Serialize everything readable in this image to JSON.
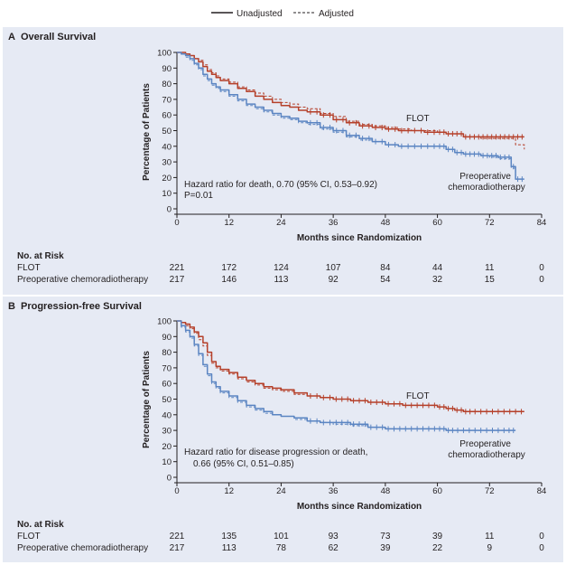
{
  "legend": {
    "unadjusted": "Unadjusted",
    "adjusted": "Adjusted"
  },
  "colors": {
    "flot": "#b5402a",
    "crt": "#5b85c2",
    "panel": "#e6eaf4",
    "axis": "#231f20"
  },
  "risk_header": "No. at Risk",
  "chart_data": [
    {
      "type": "line",
      "panel_letter": "A",
      "title": "Overall Survival",
      "xlabel": "Months since Randomization",
      "ylabel": "Percentage of Patients",
      "xlim": [
        0,
        84
      ],
      "ylim": [
        0,
        100
      ],
      "xticks": [
        0,
        12,
        24,
        36,
        48,
        60,
        72,
        84
      ],
      "yticks": [
        0,
        10,
        20,
        30,
        40,
        50,
        60,
        70,
        80,
        90,
        100
      ],
      "annotation": [
        "Hazard ratio for death, 0.70 (95% CI, 0.53–0.92)",
        "P=0.01"
      ],
      "series": [
        {
          "name": "FLOT",
          "label": "FLOT",
          "color": "#b5402a",
          "x": [
            0,
            1,
            2,
            3,
            4,
            5,
            6,
            7,
            8,
            9,
            10,
            12,
            14,
            16,
            18,
            20,
            22,
            24,
            26,
            28,
            30,
            33,
            36,
            39,
            42,
            45,
            48,
            51,
            54,
            57,
            60,
            62,
            64,
            66,
            68,
            70,
            72,
            74,
            76,
            78,
            79,
            80
          ],
          "y": [
            100,
            100,
            99,
            98,
            96,
            94,
            91,
            88,
            86,
            84,
            82,
            80,
            77,
            75,
            72,
            70,
            68,
            66,
            65,
            63,
            62,
            60,
            57,
            55,
            53,
            52,
            51,
            50,
            50,
            49,
            49,
            48,
            48,
            46,
            46,
            46,
            46,
            46,
            46,
            46,
            46,
            46
          ],
          "adjusted_y": [
            100,
            100,
            99,
            98,
            96,
            95,
            92,
            89,
            87,
            85,
            83,
            81,
            78,
            76,
            74,
            72,
            70,
            68,
            67,
            65,
            64,
            61,
            59,
            56,
            54,
            53,
            52,
            51,
            50,
            50,
            49,
            48,
            48,
            46,
            46,
            45,
            45,
            45,
            45,
            41,
            41,
            38
          ]
        },
        {
          "name": "Preoperative chemoradiotherapy",
          "label": "Preoperative\nchemoradiotherapy",
          "color": "#5b85c2",
          "x": [
            0,
            1,
            2,
            3,
            4,
            5,
            6,
            7,
            8,
            9,
            10,
            12,
            14,
            16,
            18,
            20,
            22,
            24,
            26,
            28,
            30,
            33,
            36,
            39,
            42,
            45,
            48,
            51,
            54,
            57,
            60,
            62,
            64,
            66,
            68,
            70,
            72,
            74,
            76,
            77,
            78,
            80
          ],
          "y": [
            100,
            99,
            98,
            96,
            93,
            90,
            86,
            83,
            80,
            78,
            76,
            73,
            70,
            67,
            65,
            63,
            61,
            59,
            58,
            56,
            55,
            52,
            50,
            47,
            45,
            43,
            41,
            40,
            40,
            40,
            40,
            38,
            36,
            35,
            35,
            34,
            34,
            33,
            33,
            27,
            19,
            19
          ],
          "adjusted_y": [
            100,
            99,
            97,
            95,
            92,
            89,
            85,
            82,
            79,
            77,
            75,
            72,
            69,
            66,
            64,
            62,
            60,
            58,
            57,
            55,
            54,
            51,
            49,
            46,
            44,
            43,
            41,
            40,
            40,
            40,
            40,
            38,
            36,
            35,
            35,
            34,
            33,
            32,
            32,
            26,
            19,
            19
          ]
        }
      ],
      "at_risk": {
        "times": [
          0,
          12,
          24,
          36,
          48,
          60,
          72,
          84
        ],
        "rows": [
          {
            "label": "FLOT",
            "values": [
              "221",
              "172",
              "124",
              "107",
              "84",
              "44",
              "11",
              "0"
            ]
          },
          {
            "label": "Preoperative chemoradiotherapy",
            "values": [
              "217",
              "146",
              "113",
              "92",
              "54",
              "32",
              "15",
              "0"
            ]
          }
        ]
      }
    },
    {
      "type": "line",
      "panel_letter": "B",
      "title": "Progression-free Survival",
      "xlabel": "Months since Randomization",
      "ylabel": "Percentage of Patients",
      "xlim": [
        0,
        84
      ],
      "ylim": [
        0,
        100
      ],
      "xticks": [
        0,
        12,
        24,
        36,
        48,
        60,
        72,
        84
      ],
      "yticks": [
        0,
        10,
        20,
        30,
        40,
        50,
        60,
        70,
        80,
        90,
        100
      ],
      "annotation": [
        "Hazard ratio for disease progression or death,",
        "0.66 (95% CI, 0.51–0.85)"
      ],
      "series": [
        {
          "name": "FLOT",
          "label": "FLOT",
          "color": "#b5402a",
          "x": [
            0,
            1,
            2,
            3,
            4,
            5,
            6,
            7,
            8,
            9,
            10,
            12,
            14,
            16,
            18,
            20,
            22,
            24,
            27,
            30,
            33,
            36,
            40,
            44,
            48,
            52,
            56,
            60,
            62,
            64,
            66,
            68,
            72,
            76,
            80
          ],
          "y": [
            100,
            99,
            98,
            96,
            93,
            90,
            86,
            80,
            74,
            71,
            69,
            67,
            64,
            62,
            60,
            58,
            57,
            56,
            54,
            52,
            51,
            50,
            49,
            48,
            47,
            46,
            46,
            45,
            44,
            43,
            42,
            42,
            42,
            42,
            42
          ],
          "adjusted_y": [
            100,
            99,
            97,
            95,
            92,
            88,
            84,
            78,
            73,
            70,
            68,
            66,
            63,
            61,
            59,
            57,
            56,
            55,
            53,
            52,
            51,
            50,
            49,
            48,
            47,
            46,
            46,
            45,
            44,
            43,
            42,
            42,
            42,
            42,
            42
          ]
        },
        {
          "name": "Preoperative chemoradiotherapy",
          "label": "Preoperative\nchemoradiotherapy",
          "color": "#5b85c2",
          "x": [
            0,
            1,
            2,
            3,
            4,
            5,
            6,
            7,
            8,
            9,
            10,
            12,
            14,
            16,
            18,
            20,
            22,
            24,
            27,
            30,
            33,
            36,
            40,
            44,
            48,
            52,
            56,
            60,
            62,
            64,
            68,
            72,
            76,
            78
          ],
          "y": [
            100,
            97,
            94,
            90,
            85,
            79,
            72,
            66,
            61,
            58,
            55,
            52,
            49,
            46,
            44,
            42,
            40,
            39,
            38,
            36,
            35,
            35,
            34,
            32,
            31,
            31,
            31,
            31,
            30,
            30,
            30,
            30,
            30,
            30
          ],
          "adjusted_y": [
            100,
            96,
            93,
            89,
            84,
            78,
            71,
            65,
            60,
            57,
            54,
            51,
            48,
            45,
            43,
            41,
            40,
            39,
            37,
            36,
            35,
            34,
            33,
            32,
            31,
            31,
            31,
            31,
            30,
            30,
            30,
            30,
            30,
            30
          ]
        }
      ],
      "at_risk": {
        "times": [
          0,
          12,
          24,
          36,
          48,
          60,
          72,
          84
        ],
        "rows": [
          {
            "label": "FLOT",
            "values": [
              "221",
              "135",
              "101",
              "93",
              "73",
              "39",
              "11",
              "0"
            ]
          },
          {
            "label": "Preoperative chemoradiotherapy",
            "values": [
              "217",
              "113",
              "78",
              "62",
              "39",
              "22",
              "9",
              "0"
            ]
          }
        ]
      }
    }
  ]
}
